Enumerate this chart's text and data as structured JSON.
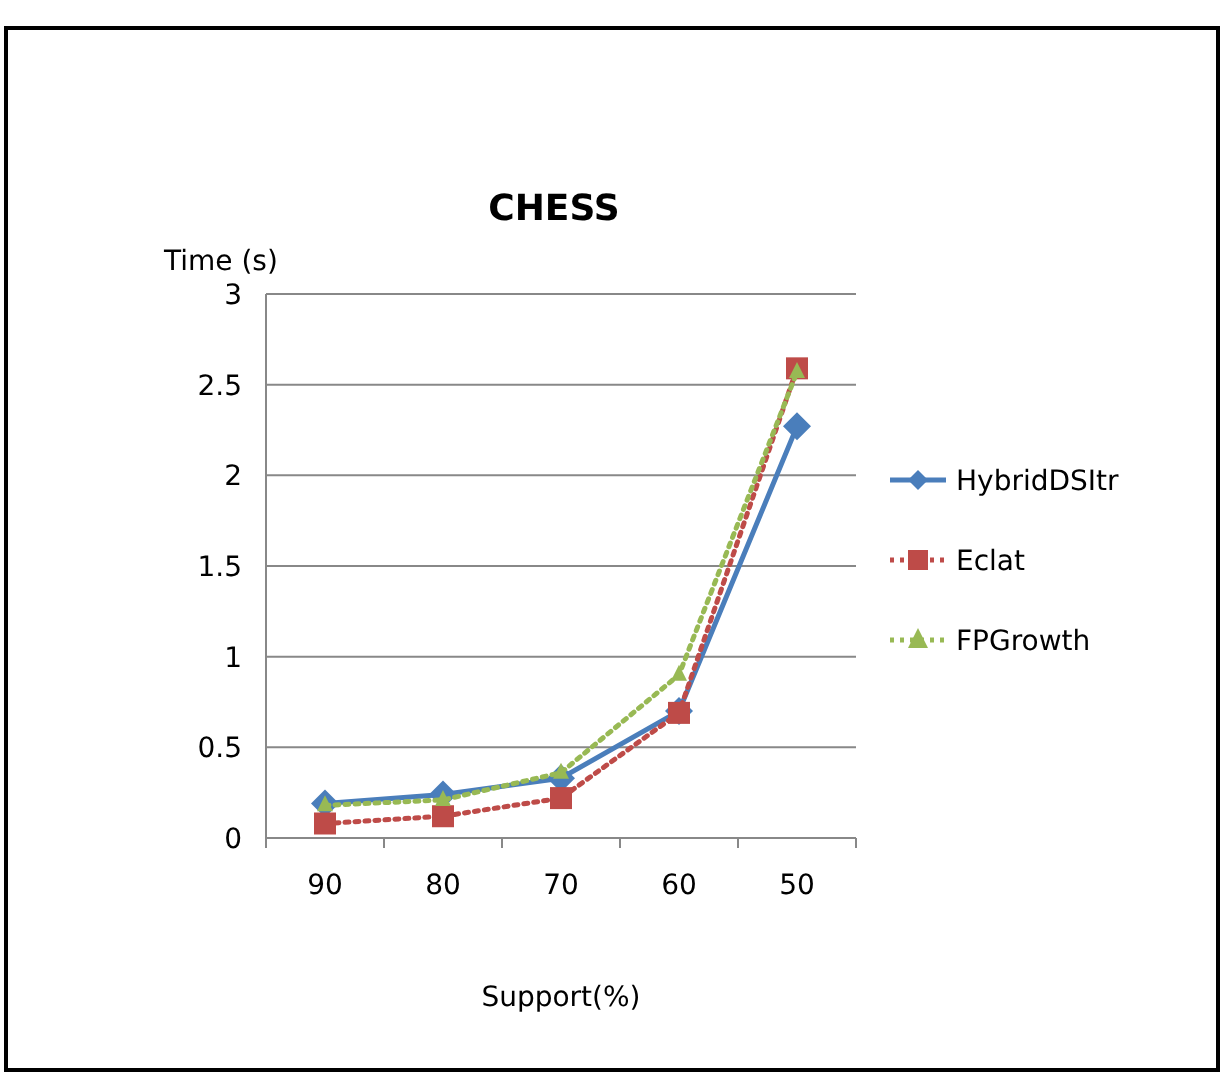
{
  "chart_data": {
    "type": "line",
    "title": "CHESS",
    "xlabel": "Support(%)",
    "ylabel": "Time (s)",
    "categories": [
      "90",
      "80",
      "70",
      "60",
      "50"
    ],
    "series": [
      {
        "name": "HybridDSItr",
        "color": "#4a7ebb",
        "values": [
          0.19,
          0.24,
          0.33,
          0.7,
          2.27
        ],
        "marker": "diamond",
        "line_style": "solid"
      },
      {
        "name": "Eclat",
        "color": "#be4b48",
        "values": [
          0.08,
          0.12,
          0.22,
          0.69,
          2.59
        ],
        "marker": "square",
        "line_style": "dotted"
      },
      {
        "name": "FPGrowth",
        "color": "#98b954",
        "values": [
          0.18,
          0.21,
          0.36,
          0.9,
          2.57
        ],
        "marker": "triangle",
        "line_style": "dotted"
      }
    ],
    "ylim": [
      0,
      3
    ],
    "yticks": [
      0,
      0.5,
      1,
      1.5,
      2,
      2.5,
      3
    ],
    "grid": "y",
    "legend": "right"
  }
}
